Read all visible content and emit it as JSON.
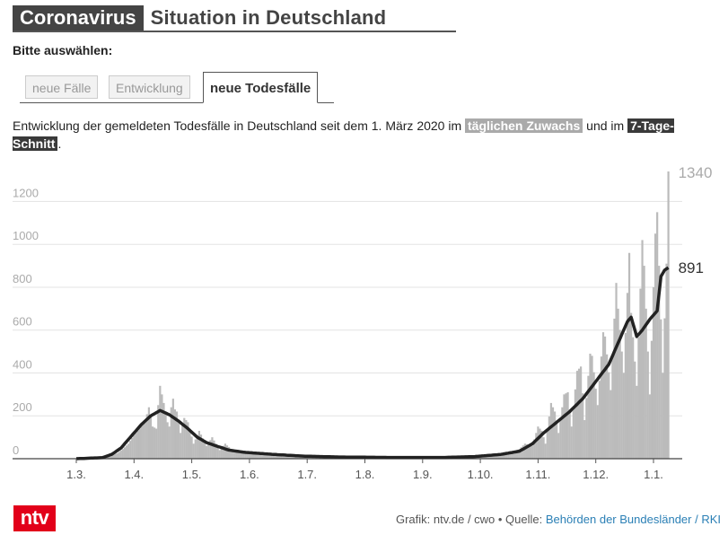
{
  "header": {
    "title_highlight": "Coronavirus",
    "title_rest": "Situation in Deutschland",
    "prompt": "Bitte auswählen:"
  },
  "tabs": [
    {
      "label": "neue Fälle",
      "active": false
    },
    {
      "label": "Entwicklung",
      "active": false
    },
    {
      "label": "neue Todesfälle",
      "active": true
    }
  ],
  "description": {
    "text_before": "Entwicklung der gemeldeten Todesfälle in Deutschland seit dem 1. März 2020 im ",
    "highlight_daily": "täglichen Zuwachs",
    "text_middle": " und im ",
    "highlight_avg": "7-Tage-Schnitt",
    "text_after": "."
  },
  "footer": {
    "credit": "Grafik: ntv.de / cwo • Quelle: ",
    "source": "Behörden der Bundesländer / RKI",
    "logo_text": "ntv"
  },
  "colors": {
    "bars": "#bbbbbb",
    "avg_line": "#222222",
    "brand": "#e2001a"
  },
  "chart_data": {
    "type": "bar",
    "title": "",
    "xlabel": "",
    "ylabel": "",
    "ylim": [
      0,
      1340
    ],
    "yticks": [
      0,
      200,
      400,
      600,
      800,
      1000,
      1200
    ],
    "x_ticks": [
      "1.3.",
      "1.4.",
      "1.5.",
      "1.6.",
      "1.7.",
      "1.8.",
      "1.9.",
      "1.10.",
      "1.11.",
      "1.12.",
      "1.1."
    ],
    "x_range": [
      "2020-03-01",
      "2021-01-13"
    ],
    "grid": true,
    "series": [
      {
        "name": "täglichen Zuwachs",
        "kind": "bar",
        "points": [
          [
            "2020-03-01",
            0
          ],
          [
            "2020-03-10",
            2
          ],
          [
            "2020-03-15",
            5
          ],
          [
            "2020-03-20",
            15
          ],
          [
            "2020-03-23",
            25
          ],
          [
            "2020-03-26",
            45
          ],
          [
            "2020-03-29",
            70
          ],
          [
            "2020-04-01",
            110
          ],
          [
            "2020-04-04",
            140
          ],
          [
            "2020-04-07",
            175
          ],
          [
            "2020-04-09",
            240
          ],
          [
            "2020-04-11",
            150
          ],
          [
            "2020-04-13",
            140
          ],
          [
            "2020-04-14",
            250
          ],
          [
            "2020-04-15",
            340
          ],
          [
            "2020-04-16",
            300
          ],
          [
            "2020-04-17",
            260
          ],
          [
            "2020-04-19",
            170
          ],
          [
            "2020-04-20",
            150
          ],
          [
            "2020-04-21",
            240
          ],
          [
            "2020-04-22",
            280
          ],
          [
            "2020-04-23",
            230
          ],
          [
            "2020-04-24",
            220
          ],
          [
            "2020-04-26",
            120
          ],
          [
            "2020-04-28",
            190
          ],
          [
            "2020-04-30",
            170
          ],
          [
            "2020-05-03",
            70
          ],
          [
            "2020-05-06",
            130
          ],
          [
            "2020-05-10",
            60
          ],
          [
            "2020-05-13",
            100
          ],
          [
            "2020-05-17",
            40
          ],
          [
            "2020-05-20",
            70
          ],
          [
            "2020-05-25",
            30
          ],
          [
            "2020-06-01",
            25
          ],
          [
            "2020-06-10",
            20
          ],
          [
            "2020-06-20",
            15
          ],
          [
            "2020-07-01",
            10
          ],
          [
            "2020-07-15",
            7
          ],
          [
            "2020-08-01",
            5
          ],
          [
            "2020-08-15",
            6
          ],
          [
            "2020-09-01",
            5
          ],
          [
            "2020-09-15",
            7
          ],
          [
            "2020-10-01",
            10
          ],
          [
            "2020-10-10",
            15
          ],
          [
            "2020-10-18",
            25
          ],
          [
            "2020-10-25",
            45
          ],
          [
            "2020-10-28",
            70
          ],
          [
            "2020-11-01",
            60
          ],
          [
            "2020-11-04",
            150
          ],
          [
            "2020-11-06",
            130
          ],
          [
            "2020-11-08",
            70
          ],
          [
            "2020-11-11",
            260
          ],
          [
            "2020-11-13",
            220
          ],
          [
            "2020-11-15",
            120
          ],
          [
            "2020-11-18",
            300
          ],
          [
            "2020-11-20",
            310
          ],
          [
            "2020-11-22",
            150
          ],
          [
            "2020-11-25",
            410
          ],
          [
            "2020-11-27",
            430
          ],
          [
            "2020-11-29",
            180
          ],
          [
            "2020-12-02",
            490
          ],
          [
            "2020-12-03",
            480
          ],
          [
            "2020-12-06",
            250
          ],
          [
            "2020-12-09",
            590
          ],
          [
            "2020-12-10",
            570
          ],
          [
            "2020-12-13",
            320
          ],
          [
            "2020-12-16",
            820
          ],
          [
            "2020-12-17",
            700
          ],
          [
            "2020-12-20",
            400
          ],
          [
            "2020-12-23",
            960
          ],
          [
            "2020-12-24",
            680
          ],
          [
            "2020-12-27",
            340
          ],
          [
            "2020-12-30",
            1020
          ],
          [
            "2020-12-31",
            900
          ],
          [
            "2021-01-03",
            300
          ],
          [
            "2021-01-06",
            1050
          ],
          [
            "2021-01-07",
            1150
          ],
          [
            "2021-01-10",
            400
          ],
          [
            "2021-01-12",
            910
          ],
          [
            "2021-01-13",
            1340
          ]
        ]
      },
      {
        "name": "7-Tage-Schnitt",
        "kind": "line",
        "points": [
          [
            "2020-03-01",
            0
          ],
          [
            "2020-03-15",
            5
          ],
          [
            "2020-03-20",
            20
          ],
          [
            "2020-03-25",
            50
          ],
          [
            "2020-03-30",
            100
          ],
          [
            "2020-04-05",
            160
          ],
          [
            "2020-04-10",
            200
          ],
          [
            "2020-04-15",
            225
          ],
          [
            "2020-04-20",
            205
          ],
          [
            "2020-04-25",
            175
          ],
          [
            "2020-04-30",
            140
          ],
          [
            "2020-05-05",
            100
          ],
          [
            "2020-05-10",
            75
          ],
          [
            "2020-05-15",
            60
          ],
          [
            "2020-05-22",
            40
          ],
          [
            "2020-05-30",
            30
          ],
          [
            "2020-06-15",
            20
          ],
          [
            "2020-07-01",
            12
          ],
          [
            "2020-07-20",
            8
          ],
          [
            "2020-08-15",
            6
          ],
          [
            "2020-09-15",
            6
          ],
          [
            "2020-10-01",
            10
          ],
          [
            "2020-10-15",
            20
          ],
          [
            "2020-10-25",
            35
          ],
          [
            "2020-11-01",
            70
          ],
          [
            "2020-11-07",
            120
          ],
          [
            "2020-11-14",
            170
          ],
          [
            "2020-11-21",
            220
          ],
          [
            "2020-11-28",
            280
          ],
          [
            "2020-12-05",
            360
          ],
          [
            "2020-12-12",
            440
          ],
          [
            "2020-12-18",
            560
          ],
          [
            "2020-12-22",
            640
          ],
          [
            "2020-12-24",
            660
          ],
          [
            "2020-12-27",
            570
          ],
          [
            "2020-12-30",
            600
          ],
          [
            "2021-01-03",
            650
          ],
          [
            "2021-01-07",
            690
          ],
          [
            "2021-01-09",
            850
          ],
          [
            "2021-01-11",
            880
          ],
          [
            "2021-01-13",
            891
          ]
        ]
      }
    ],
    "end_labels": [
      {
        "series": "täglichen Zuwachs",
        "text": "1340"
      },
      {
        "series": "7-Tage-Schnitt",
        "text": "891"
      }
    ]
  }
}
